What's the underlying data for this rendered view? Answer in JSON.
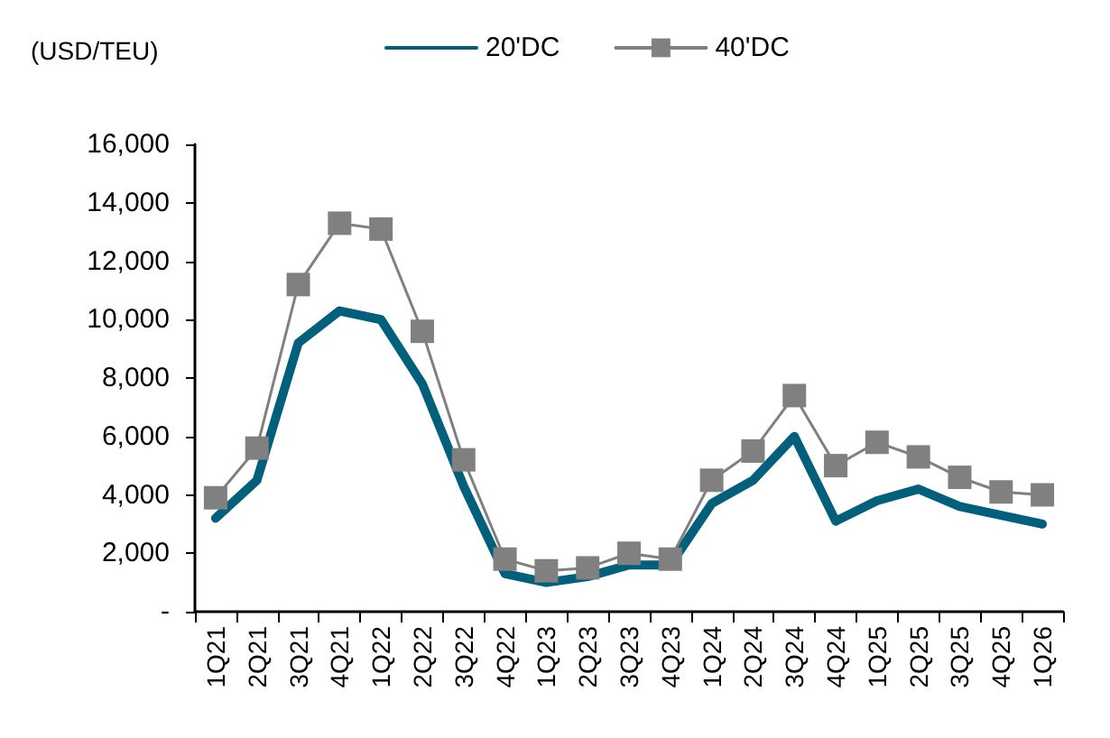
{
  "chart_data": {
    "type": "line",
    "ylabel": "(USD/TEU)",
    "categories": [
      "1Q21",
      "2Q21",
      "3Q21",
      "4Q21",
      "1Q22",
      "2Q22",
      "3Q22",
      "4Q22",
      "1Q23",
      "2Q23",
      "3Q23",
      "4Q23",
      "1Q24",
      "2Q24",
      "3Q24",
      "4Q24",
      "1Q25",
      "2Q25",
      "3Q25",
      "4Q25",
      "1Q26"
    ],
    "series": [
      {
        "name": "20'DC",
        "color": "#005f7a",
        "marker": "none",
        "values": [
          3200,
          4500,
          9200,
          10300,
          10000,
          7800,
          4300,
          1300,
          1000,
          1200,
          1600,
          1600,
          3700,
          4500,
          6000,
          3100,
          3800,
          4200,
          3600,
          3300,
          3000
        ]
      },
      {
        "name": "40'DC",
        "color": "#808080",
        "marker": "square",
        "values": [
          3900,
          5600,
          11200,
          13300,
          13100,
          9600,
          5200,
          1800,
          1400,
          1500,
          2000,
          1800,
          4500,
          5500,
          7400,
          5000,
          5800,
          5300,
          4600,
          4100,
          4000
        ]
      }
    ],
    "ylim": [
      0,
      16000
    ],
    "yticks": [
      {
        "value": 0,
        "label": "-"
      },
      {
        "value": 2000,
        "label": "2,000"
      },
      {
        "value": 4000,
        "label": "4,000"
      },
      {
        "value": 6000,
        "label": "6,000"
      },
      {
        "value": 8000,
        "label": "8,000"
      },
      {
        "value": 10000,
        "label": "10,000"
      },
      {
        "value": 12000,
        "label": "12,000"
      },
      {
        "value": 14000,
        "label": "14,000"
      },
      {
        "value": 16000,
        "label": "16,000"
      }
    ],
    "grid": false,
    "legend": "top"
  }
}
